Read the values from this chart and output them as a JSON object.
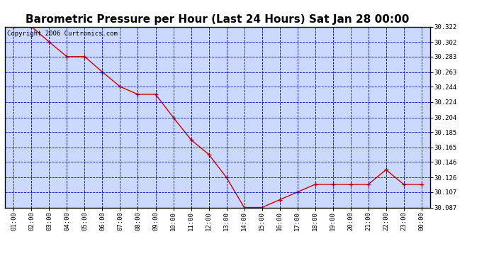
{
  "title": "Barometric Pressure per Hour (Last 24 Hours) Sat Jan 28 00:00",
  "copyright_text": "Copyright 2006 Curtronics.com",
  "x_labels": [
    "01:00",
    "02:00",
    "03:00",
    "04:00",
    "05:00",
    "06:00",
    "07:00",
    "08:00",
    "09:00",
    "10:00",
    "11:00",
    "12:00",
    "13:00",
    "14:00",
    "15:00",
    "16:00",
    "17:00",
    "18:00",
    "19:00",
    "20:00",
    "21:00",
    "22:00",
    "23:00",
    "00:00"
  ],
  "x_values": [
    1,
    2,
    3,
    4,
    5,
    6,
    7,
    8,
    9,
    10,
    11,
    12,
    13,
    14,
    15,
    16,
    17,
    18,
    19,
    20,
    21,
    22,
    23,
    24
  ],
  "y_values": [
    30.322,
    30.322,
    30.302,
    30.283,
    30.283,
    30.263,
    30.244,
    30.234,
    30.234,
    30.204,
    30.175,
    30.156,
    30.126,
    30.087,
    30.087,
    30.097,
    30.107,
    30.117,
    30.117,
    30.117,
    30.117,
    30.136,
    30.117,
    30.117
  ],
  "line_color": "#cc0000",
  "marker_color": "#cc0000",
  "bg_color": "#ccd9ff",
  "outer_bg_color": "#ffffff",
  "grid_color": "#0000cc",
  "title_fontsize": 11,
  "ylim_min": 30.087,
  "ylim_max": 30.322,
  "ytick_values": [
    30.087,
    30.107,
    30.126,
    30.146,
    30.165,
    30.185,
    30.204,
    30.224,
    30.244,
    30.263,
    30.283,
    30.302,
    30.322
  ]
}
